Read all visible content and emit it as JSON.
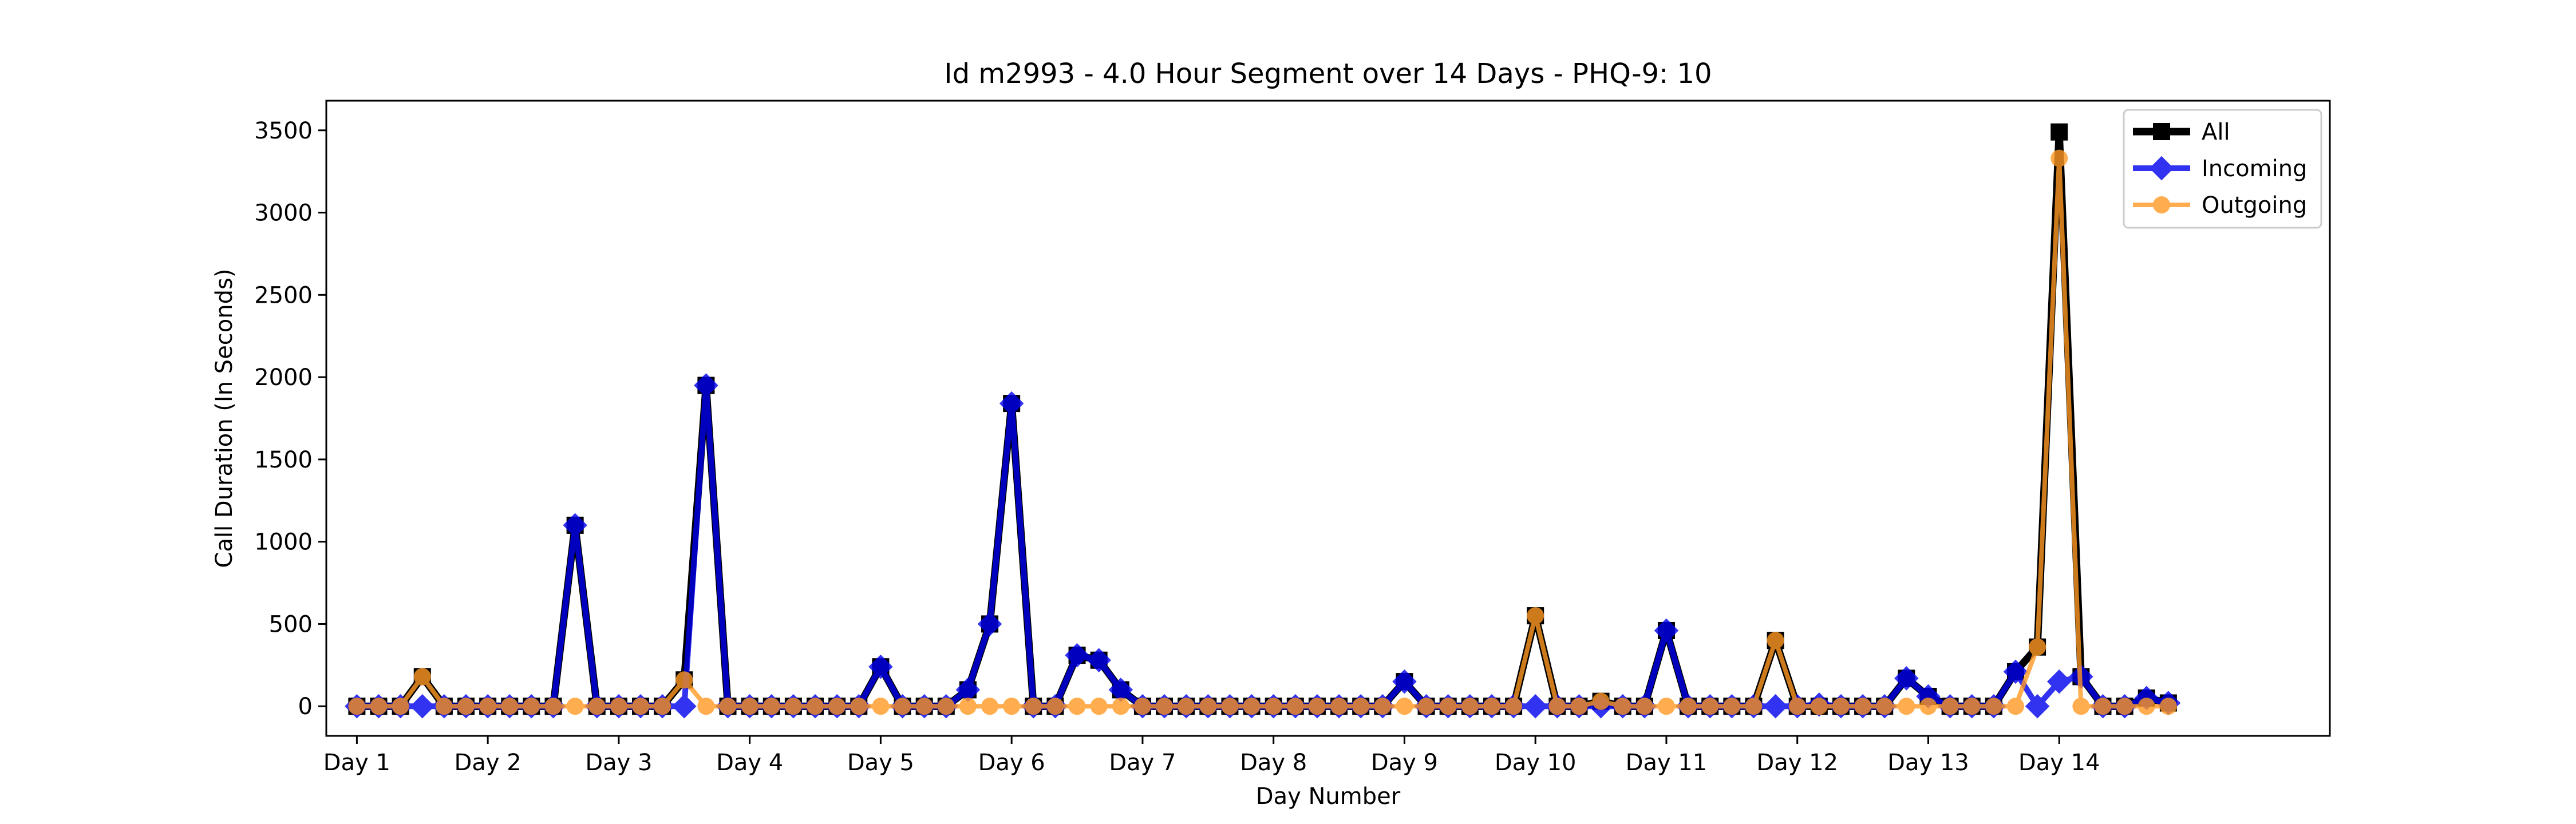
{
  "chart_data": {
    "type": "line",
    "title": "Id m2993 - 4.0 Hour Segment over 14 Days - PHQ-9: 10",
    "xlabel": "Day Number",
    "ylabel": "Call Duration (In Seconds)",
    "ylim": [
      -180,
      3680
    ],
    "xlim": [
      -1.4,
      90.4
    ],
    "yticks": [
      0,
      500,
      1000,
      1500,
      2000,
      2500,
      3000,
      3500
    ],
    "xtick_positions": [
      0,
      6,
      12,
      18,
      24,
      30,
      36,
      42,
      48,
      54,
      60,
      66,
      72,
      78
    ],
    "xtick_labels": [
      "Day 1",
      "Day 2",
      "Day 3",
      "Day 4",
      "Day 5",
      "Day 6",
      "Day 7",
      "Day 8",
      "Day 9",
      "Day 10",
      "Day 11",
      "Day 12",
      "Day 13",
      "Day 14"
    ],
    "grid": false,
    "legend_position": "top-right",
    "x": [
      0,
      1,
      2,
      3,
      4,
      5,
      6,
      7,
      8,
      9,
      10,
      11,
      12,
      13,
      14,
      15,
      16,
      17,
      18,
      19,
      20,
      21,
      22,
      23,
      24,
      25,
      26,
      27,
      28,
      29,
      30,
      31,
      32,
      33,
      34,
      35,
      36,
      37,
      38,
      39,
      40,
      41,
      42,
      43,
      44,
      45,
      46,
      47,
      48,
      49,
      50,
      51,
      52,
      53,
      54,
      55,
      56,
      57,
      58,
      59,
      60,
      61,
      62,
      63,
      64,
      65,
      66,
      67,
      68,
      69,
      70,
      71,
      72,
      73,
      74,
      75,
      76,
      77,
      78,
      79,
      80,
      81,
      82,
      83
    ],
    "series": [
      {
        "name": "All",
        "color": "#000000",
        "marker": "square",
        "values": [
          0,
          0,
          0,
          180,
          0,
          0,
          0,
          0,
          0,
          0,
          1100,
          0,
          0,
          0,
          0,
          160,
          1950,
          0,
          0,
          0,
          0,
          0,
          0,
          0,
          240,
          0,
          0,
          0,
          100,
          500,
          1840,
          0,
          0,
          310,
          280,
          100,
          0,
          0,
          0,
          0,
          0,
          0,
          0,
          0,
          0,
          0,
          0,
          0,
          150,
          0,
          0,
          0,
          0,
          0,
          550,
          0,
          0,
          30,
          0,
          0,
          460,
          0,
          0,
          0,
          0,
          400,
          0,
          0,
          0,
          0,
          0,
          170,
          60,
          0,
          0,
          0,
          210,
          360,
          3490,
          180,
          0,
          0,
          50,
          20
        ]
      },
      {
        "name": "Incoming",
        "color": "#0000ee",
        "marker": "diamond",
        "values": [
          0,
          0,
          0,
          0,
          0,
          0,
          0,
          0,
          0,
          0,
          1100,
          0,
          0,
          0,
          0,
          0,
          1950,
          0,
          0,
          0,
          0,
          0,
          0,
          0,
          240,
          0,
          0,
          0,
          100,
          500,
          1840,
          0,
          0,
          310,
          280,
          100,
          0,
          0,
          0,
          0,
          0,
          0,
          0,
          0,
          0,
          0,
          0,
          0,
          150,
          0,
          0,
          0,
          0,
          0,
          0,
          0,
          0,
          0,
          0,
          0,
          460,
          0,
          0,
          0,
          0,
          0,
          0,
          10,
          0,
          0,
          0,
          170,
          60,
          0,
          0,
          0,
          210,
          0,
          150,
          180,
          0,
          0,
          50,
          20
        ]
      },
      {
        "name": "Outgoing",
        "color": "#ff9922",
        "marker": "circle",
        "values": [
          0,
          0,
          0,
          180,
          0,
          0,
          0,
          0,
          0,
          0,
          0,
          0,
          0,
          0,
          0,
          160,
          0,
          0,
          0,
          0,
          0,
          0,
          0,
          0,
          0,
          0,
          0,
          0,
          0,
          0,
          0,
          0,
          0,
          0,
          0,
          0,
          0,
          0,
          0,
          0,
          0,
          0,
          0,
          0,
          0,
          0,
          0,
          0,
          0,
          0,
          0,
          0,
          0,
          0,
          550,
          0,
          0,
          30,
          0,
          0,
          0,
          0,
          0,
          0,
          0,
          400,
          0,
          0,
          0,
          0,
          0,
          0,
          0,
          0,
          0,
          0,
          0,
          360,
          3330,
          0,
          0,
          0,
          0,
          0
        ]
      }
    ]
  }
}
